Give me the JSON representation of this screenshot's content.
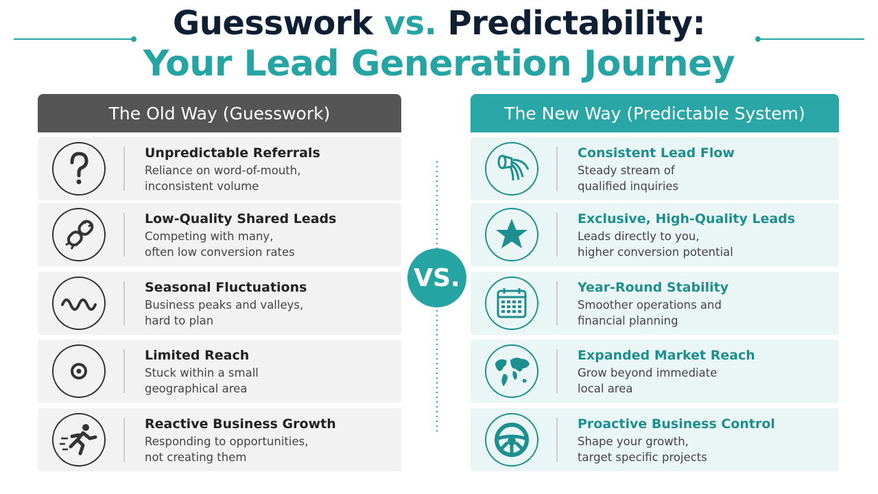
{
  "header": {
    "title_part1": "Guesswork",
    "title_vs": "vs.",
    "title_part2": "Predictability:",
    "subtitle": "Your Lead Generation Journey"
  },
  "vs_badge": "VS.",
  "old_way": {
    "heading": "The Old Way (Guesswork)",
    "items": [
      {
        "title": "Unpredictable Referrals",
        "lines": [
          "Reliance on word-of-mouth,",
          "inconsistent volume"
        ]
      },
      {
        "title": "Low-Quality Shared Leads",
        "lines": [
          "Competing with many,",
          "often low conversion rates"
        ]
      },
      {
        "title": "Seasonal Fluctuations",
        "lines": [
          "Business peaks and valleys,",
          "hard to plan"
        ]
      },
      {
        "title": "Limited Reach",
        "lines": [
          "Stuck within a small",
          "geographical area"
        ]
      },
      {
        "title": "Reactive Business Growth",
        "lines": [
          "Responding to opportunities,",
          "not creating them"
        ]
      }
    ]
  },
  "new_way": {
    "heading": "The New Way (Predictable System)",
    "items": [
      {
        "title": "Consistent Lead Flow",
        "lines": [
          "Steady stream of",
          "qualified inquiries"
        ]
      },
      {
        "title": "Exclusive, High-Quality Leads",
        "lines": [
          "Leads directly to you,",
          "higher conversion potential"
        ]
      },
      {
        "title": "Year-Round Stability",
        "lines": [
          "Smoother operations and",
          "financial planning"
        ]
      },
      {
        "title": "Expanded Market Reach",
        "lines": [
          "Grow beyond immediate",
          "local area"
        ]
      },
      {
        "title": "Proactive Business Control",
        "lines": [
          "Shape your growth,",
          "target specific projects"
        ]
      }
    ]
  }
}
